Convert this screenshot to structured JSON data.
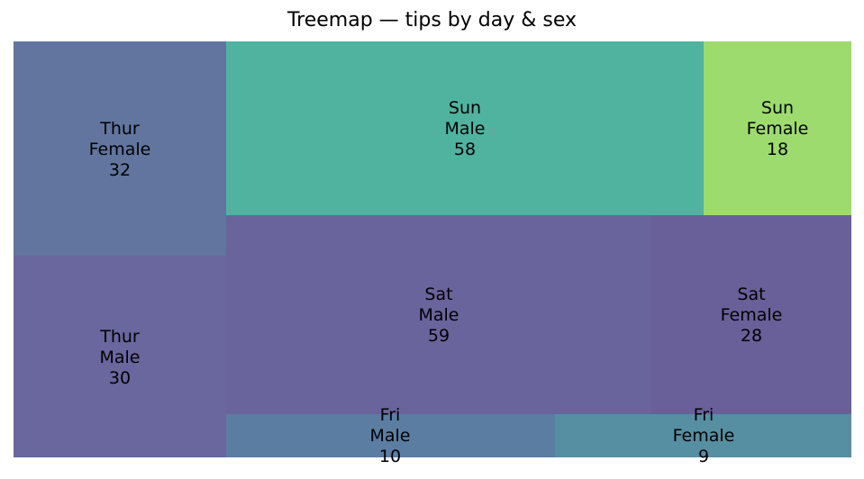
{
  "chart_data": {
    "type": "treemap",
    "title": "Treemap — tips by day & sex",
    "tiles": [
      {
        "day": "Thur",
        "sex": "Female",
        "value": 32,
        "color": "#62759F"
      },
      {
        "day": "Thur",
        "sex": "Male",
        "value": 30,
        "color": "#6A669E"
      },
      {
        "day": "Sun",
        "sex": "Male",
        "value": 58,
        "color": "#4FB3A0"
      },
      {
        "day": "Sun",
        "sex": "Female",
        "value": 18,
        "color": "#9DDB6E"
      },
      {
        "day": "Sat",
        "sex": "Male",
        "value": 59,
        "color": "#6A649C"
      },
      {
        "day": "Sat",
        "sex": "Female",
        "value": 28,
        "color": "#69609A"
      },
      {
        "day": "Fri",
        "sex": "Male",
        "value": 10,
        "color": "#5B7DA2"
      },
      {
        "day": "Fri",
        "sex": "Female",
        "value": 9,
        "color": "#568EA2"
      }
    ]
  }
}
